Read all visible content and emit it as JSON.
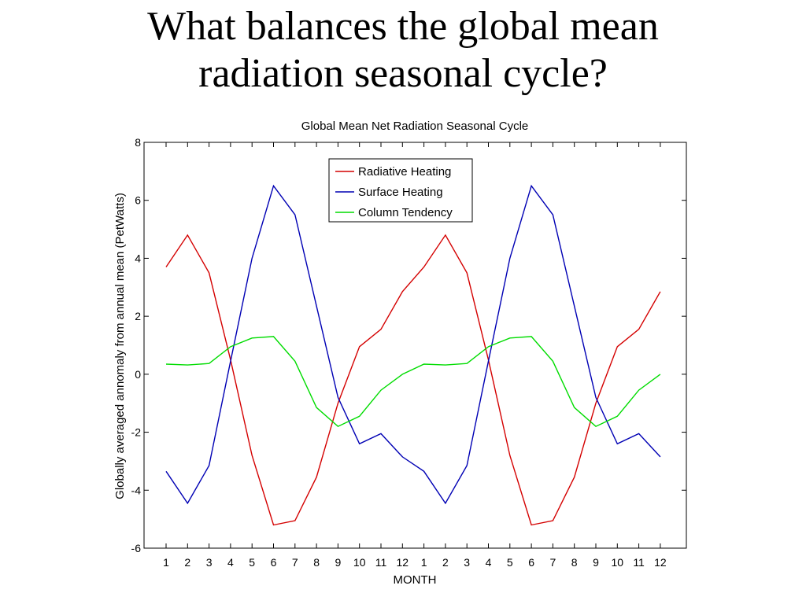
{
  "slide": {
    "title_line1": "What balances the global mean",
    "title_line2": "radiation seasonal cycle?"
  },
  "chart_data": {
    "type": "line",
    "title": "Global Mean Net Radiation Seasonal Cycle",
    "xlabel": "MONTH",
    "ylabel": "Globally averaged annomaly from annual mean (PetWatts)",
    "categories": [
      "1",
      "2",
      "3",
      "4",
      "5",
      "6",
      "7",
      "8",
      "9",
      "10",
      "11",
      "12",
      "1",
      "2",
      "3",
      "4",
      "5",
      "6",
      "7",
      "8",
      "9",
      "10",
      "11",
      "12"
    ],
    "ylim": [
      -6,
      8
    ],
    "yticks": [
      -6,
      -4,
      -2,
      0,
      2,
      4,
      6,
      8
    ],
    "grid": false,
    "legend_position": "top-center",
    "series": [
      {
        "name": "Radiative Heating",
        "color": "#d40000",
        "values": [
          3.7,
          4.8,
          3.5,
          0.5,
          -2.8,
          -5.2,
          -5.05,
          -3.55,
          -1.0,
          0.95,
          1.55,
          2.85,
          3.7,
          4.8,
          3.5,
          0.5,
          -2.8,
          -5.2,
          -5.05,
          -3.55,
          -1.0,
          0.95,
          1.55,
          2.85
        ]
      },
      {
        "name": "Surface Heating",
        "color": "#0000b4",
        "values": [
          -3.35,
          -4.45,
          -3.15,
          0.45,
          4.0,
          6.5,
          5.5,
          2.35,
          -0.8,
          -2.4,
          -2.05,
          -2.85,
          -3.35,
          -4.45,
          -3.15,
          0.45,
          4.0,
          6.5,
          5.5,
          2.35,
          -0.8,
          -2.4,
          -2.05,
          -2.85
        ]
      },
      {
        "name": "Column Tendency",
        "color": "#00dc00",
        "values": [
          0.35,
          0.32,
          0.37,
          0.95,
          1.25,
          1.3,
          0.45,
          -1.15,
          -1.8,
          -1.45,
          -0.55,
          0.0,
          0.35,
          0.32,
          0.37,
          0.95,
          1.25,
          1.3,
          0.45,
          -1.15,
          -1.8,
          -1.45,
          -0.55,
          0.0
        ]
      }
    ]
  }
}
